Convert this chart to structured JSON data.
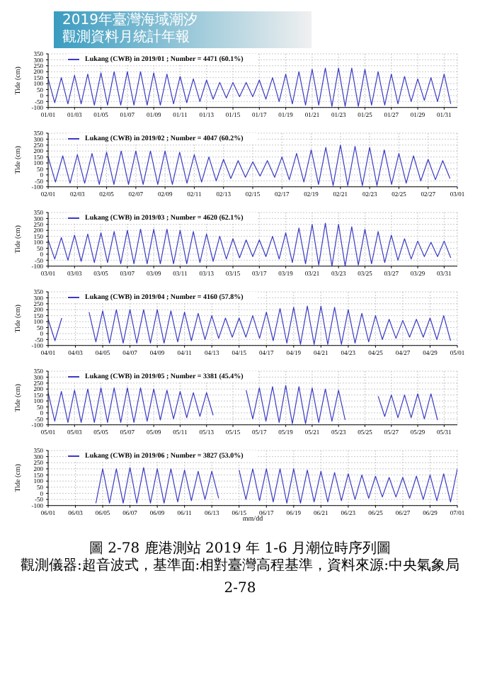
{
  "chart_data": [
    {
      "type": "line",
      "annotations": [
        "2019年臺灣海域潮汐",
        "觀測資料月統計年報"
      ],
      "ylabel": "Tide (cm)",
      "ylim": [
        -100,
        350
      ],
      "yticks": [
        -100,
        -50,
        0,
        50,
        100,
        150,
        200,
        250,
        300,
        350
      ],
      "xlim": [
        "2019-01-01",
        "2019-02-01"
      ],
      "xticks": [
        {
          "value": "2019-01-01",
          "label": "01/01"
        },
        {
          "value": "2019-01-03",
          "label": "01/03"
        },
        {
          "value": "2019-01-05",
          "label": "01/05"
        },
        {
          "value": "2019-01-07",
          "label": "01/07"
        },
        {
          "value": "2019-01-09",
          "label": "01/09"
        },
        {
          "value": "2019-01-11",
          "label": "01/11"
        },
        {
          "value": "2019-01-13",
          "label": "01/13"
        },
        {
          "value": "2019-01-15",
          "label": "01/15"
        },
        {
          "value": "2019-01-17",
          "label": "01/17"
        },
        {
          "value": "2019-01-19",
          "label": "01/19"
        },
        {
          "value": "2019-01-21",
          "label": "01/21"
        },
        {
          "value": "2019-01-23",
          "label": "01/23"
        },
        {
          "value": "2019-01-25",
          "label": "01/25"
        },
        {
          "value": "2019-01-27",
          "label": "01/27"
        },
        {
          "value": "2019-01-29",
          "label": "01/29"
        },
        {
          "value": "2019-01-31",
          "label": "01/31"
        }
      ],
      "grid": true,
      "legend": "top left",
      "marker": "none",
      "line_style": "solid",
      "series": [
        {
          "name": "Lukang (CWB) in 2019/01 ; Number = 4471  (60.1%)",
          "color": "#3b3bc4",
          "x": [
            "2019-01-01",
            "2019-01-01T12:00",
            "2019-01-02",
            "2019-01-02T12:00",
            "2019-01-03",
            "2019-01-03T12:00",
            "2019-01-04",
            "2019-01-04T12:00",
            "2019-01-05",
            "2019-01-05T12:00",
            "2019-01-06",
            "2019-01-06T12:00",
            "2019-01-07",
            "2019-01-07T12:00",
            "2019-01-08",
            "2019-01-08T12:00",
            "2019-01-09",
            "2019-01-09T12:00",
            "2019-01-10",
            "2019-01-10T12:00",
            "2019-01-11",
            "2019-01-11T12:00",
            "2019-01-12",
            "2019-01-12T12:00",
            "2019-01-13",
            "2019-01-13T12:00",
            "2019-01-14",
            "2019-01-14T12:00",
            "2019-01-15",
            "2019-01-15T12:00",
            "2019-01-16",
            "2019-01-16T12:00",
            "2019-01-17",
            "2019-01-17T12:00",
            "2019-01-18",
            "2019-01-18T12:00",
            "2019-01-19",
            "2019-01-19T12:00",
            "2019-01-20",
            "2019-01-20T12:00",
            "2019-01-21",
            "2019-01-21T12:00",
            "2019-01-22",
            "2019-01-22T12:00",
            "2019-01-23",
            "2019-01-23T12:00",
            "2019-01-24",
            "2019-01-24T12:00",
            "2019-01-25",
            "2019-01-25T12:00",
            "2019-01-26",
            "2019-01-26T12:00",
            "2019-01-27",
            "2019-01-27T12:00",
            "2019-01-28",
            "2019-01-28T12:00",
            "2019-01-29",
            "2019-01-29T12:00",
            "2019-01-30",
            "2019-01-30T12:00",
            "2019-01-31",
            "2019-01-31T12:00"
          ],
          "values": [
            140,
            -60,
            150,
            -70,
            170,
            -70,
            180,
            -80,
            190,
            -80,
            200,
            -80,
            200,
            -80,
            200,
            -80,
            190,
            -80,
            180,
            -70,
            160,
            -60,
            140,
            -50,
            130,
            -30,
            110,
            -20,
            110,
            -10,
            110,
            -10,
            130,
            -30,
            150,
            -50,
            180,
            -70,
            200,
            -80,
            220,
            -80,
            230,
            -90,
            230,
            -90,
            230,
            -90,
            220,
            -80,
            200,
            -80,
            180,
            -70,
            160,
            -50,
            140,
            -40,
            150,
            -50,
            180,
            -70
          ]
        }
      ]
    },
    {
      "type": "line",
      "ylabel": "Tide (cm)",
      "ylim": [
        -100,
        350
      ],
      "yticks": [
        -100,
        -50,
        0,
        50,
        100,
        150,
        200,
        250,
        300,
        350
      ],
      "xlim": [
        "2019-02-01",
        "2019-03-01"
      ],
      "xticks": [
        {
          "value": "2019-02-01",
          "label": "02/01"
        },
        {
          "value": "2019-02-03",
          "label": "02/03"
        },
        {
          "value": "2019-02-05",
          "label": "02/05"
        },
        {
          "value": "2019-02-07",
          "label": "02/07"
        },
        {
          "value": "2019-02-09",
          "label": "02/09"
        },
        {
          "value": "2019-02-11",
          "label": "02/11"
        },
        {
          "value": "2019-02-13",
          "label": "02/13"
        },
        {
          "value": "2019-02-15",
          "label": "02/15"
        },
        {
          "value": "2019-02-17",
          "label": "02/17"
        },
        {
          "value": "2019-02-19",
          "label": "02/19"
        },
        {
          "value": "2019-02-21",
          "label": "02/21"
        },
        {
          "value": "2019-02-23",
          "label": "02/23"
        },
        {
          "value": "2019-02-25",
          "label": "02/25"
        },
        {
          "value": "2019-02-27",
          "label": "02/27"
        },
        {
          "value": "2019-03-01",
          "label": "03/01"
        }
      ],
      "grid": true,
      "legend": "top left",
      "marker": "none",
      "line_style": "solid",
      "series": [
        {
          "name": "Lukang (CWB) in 2019/02 ; Number = 4047  (60.2%)",
          "color": "#3b3bc4",
          "x": [
            "2019-02-01",
            "2019-02-01T12:00",
            "2019-02-02",
            "2019-02-02T12:00",
            "2019-02-03",
            "2019-02-03T12:00",
            "2019-02-04",
            "2019-02-04T12:00",
            "2019-02-05",
            "2019-02-05T12:00",
            "2019-02-06",
            "2019-02-06T12:00",
            "2019-02-07",
            "2019-02-07T12:00",
            "2019-02-08",
            "2019-02-08T12:00",
            "2019-02-09",
            "2019-02-09T12:00",
            "2019-02-10",
            "2019-02-10T12:00",
            "2019-02-11",
            "2019-02-11T12:00",
            "2019-02-12",
            "2019-02-12T12:00",
            "2019-02-13",
            "2019-02-13T12:00",
            "2019-02-14",
            "2019-02-14T12:00",
            "2019-02-15",
            "2019-02-15T12:00",
            "2019-02-16",
            "2019-02-16T12:00",
            "2019-02-17",
            "2019-02-17T12:00",
            "2019-02-18",
            "2019-02-18T12:00",
            "2019-02-19",
            "2019-02-19T12:00",
            "2019-02-20",
            "2019-02-20T12:00",
            "2019-02-21",
            "2019-02-21T12:00",
            "2019-02-22",
            "2019-02-22T12:00",
            "2019-02-23",
            "2019-02-23T12:00",
            "2019-02-24",
            "2019-02-24T12:00",
            "2019-02-25",
            "2019-02-25T12:00",
            "2019-02-26",
            "2019-02-26T12:00",
            "2019-02-27",
            "2019-02-27T12:00",
            "2019-02-28",
            "2019-02-28T12:00"
          ],
          "values": [
            150,
            -60,
            160,
            -70,
            170,
            -70,
            180,
            -80,
            190,
            -80,
            200,
            -80,
            200,
            -80,
            200,
            -80,
            200,
            -80,
            190,
            -70,
            170,
            -60,
            150,
            -50,
            130,
            -30,
            120,
            -20,
            110,
            -10,
            120,
            -20,
            150,
            -40,
            180,
            -60,
            210,
            -80,
            230,
            -90,
            250,
            -90,
            240,
            -90,
            230,
            -90,
            210,
            -80,
            180,
            -70,
            160,
            -50,
            130,
            -40,
            120,
            -30
          ]
        }
      ]
    },
    {
      "type": "line",
      "ylabel": "Tide (cm)",
      "ylim": [
        -100,
        350
      ],
      "yticks": [
        -100,
        -50,
        0,
        50,
        100,
        150,
        200,
        250,
        300,
        350
      ],
      "xlim": [
        "2019-03-01",
        "2019-04-01"
      ],
      "xticks": [
        {
          "value": "2019-03-01",
          "label": "03/01"
        },
        {
          "value": "2019-03-03",
          "label": "03/03"
        },
        {
          "value": "2019-03-05",
          "label": "03/05"
        },
        {
          "value": "2019-03-07",
          "label": "03/07"
        },
        {
          "value": "2019-03-09",
          "label": "03/09"
        },
        {
          "value": "2019-03-11",
          "label": "03/11"
        },
        {
          "value": "2019-03-13",
          "label": "03/13"
        },
        {
          "value": "2019-03-15",
          "label": "03/15"
        },
        {
          "value": "2019-03-17",
          "label": "03/17"
        },
        {
          "value": "2019-03-19",
          "label": "03/19"
        },
        {
          "value": "2019-03-21",
          "label": "03/21"
        },
        {
          "value": "2019-03-23",
          "label": "03/23"
        },
        {
          "value": "2019-03-25",
          "label": "03/25"
        },
        {
          "value": "2019-03-27",
          "label": "03/27"
        },
        {
          "value": "2019-03-29",
          "label": "03/29"
        },
        {
          "value": "2019-03-31",
          "label": "03/31"
        }
      ],
      "grid": true,
      "legend": "top left",
      "marker": "none",
      "line_style": "solid",
      "series": [
        {
          "name": "Lukang (CWB) in 2019/03 ; Number = 4620  (62.1%)",
          "color": "#3b3bc4",
          "x": [
            "2019-03-01",
            "2019-03-01T12:00",
            "2019-03-02",
            "2019-03-02T12:00",
            "2019-03-03",
            "2019-03-03T12:00",
            "2019-03-04",
            "2019-03-04T12:00",
            "2019-03-05",
            "2019-03-05T12:00",
            "2019-03-06",
            "2019-03-06T12:00",
            "2019-03-07",
            "2019-03-07T12:00",
            "2019-03-08",
            "2019-03-08T12:00",
            "2019-03-09",
            "2019-03-09T12:00",
            "2019-03-10",
            "2019-03-10T12:00",
            "2019-03-11",
            "2019-03-11T12:00",
            "2019-03-12",
            "2019-03-12T12:00",
            "2019-03-13",
            "2019-03-13T12:00",
            "2019-03-14",
            "2019-03-14T12:00",
            "2019-03-15",
            "2019-03-15T12:00",
            "2019-03-16",
            "2019-03-16T12:00",
            "2019-03-17",
            "2019-03-17T12:00",
            "2019-03-18",
            "2019-03-18T12:00",
            "2019-03-19",
            "2019-03-19T12:00",
            "2019-03-20",
            "2019-03-20T12:00",
            "2019-03-21",
            "2019-03-21T12:00",
            "2019-03-22",
            "2019-03-22T12:00",
            "2019-03-23",
            "2019-03-23T12:00",
            "2019-03-24",
            "2019-03-24T12:00",
            "2019-03-25",
            "2019-03-25T12:00",
            "2019-03-26",
            "2019-03-26T12:00",
            "2019-03-27",
            "2019-03-27T12:00",
            "2019-03-28",
            "2019-03-28T12:00",
            "2019-03-29",
            "2019-03-29T12:00",
            "2019-03-30",
            "2019-03-30T12:00",
            "2019-03-31",
            "2019-03-31T12:00"
          ],
          "values": [
            120,
            -40,
            140,
            -50,
            160,
            -60,
            170,
            -70,
            180,
            -70,
            190,
            -80,
            200,
            -80,
            210,
            -80,
            210,
            -80,
            210,
            -80,
            200,
            -80,
            190,
            -70,
            170,
            -60,
            150,
            -40,
            130,
            -30,
            120,
            -20,
            120,
            -20,
            150,
            -40,
            180,
            -70,
            220,
            -80,
            250,
            -90,
            260,
            -100,
            250,
            -100,
            230,
            -90,
            210,
            -80,
            190,
            -70,
            160,
            -50,
            130,
            -40,
            110,
            -20,
            100,
            -20,
            110,
            -30
          ]
        }
      ]
    },
    {
      "type": "line",
      "ylabel": "Tide (cm)",
      "ylim": [
        -100,
        350
      ],
      "yticks": [
        -100,
        -50,
        0,
        50,
        100,
        150,
        200,
        250,
        300,
        350
      ],
      "xlim": [
        "2019-04-01",
        "2019-05-01"
      ],
      "xticks": [
        {
          "value": "2019-04-01",
          "label": "04/01"
        },
        {
          "value": "2019-04-03",
          "label": "04/03"
        },
        {
          "value": "2019-04-05",
          "label": "04/05"
        },
        {
          "value": "2019-04-07",
          "label": "04/07"
        },
        {
          "value": "2019-04-09",
          "label": "04/09"
        },
        {
          "value": "2019-04-11",
          "label": "04/11"
        },
        {
          "value": "2019-04-13",
          "label": "04/13"
        },
        {
          "value": "2019-04-15",
          "label": "04/15"
        },
        {
          "value": "2019-04-17",
          "label": "04/17"
        },
        {
          "value": "2019-04-19",
          "label": "04/19"
        },
        {
          "value": "2019-04-21",
          "label": "04/21"
        },
        {
          "value": "2019-04-23",
          "label": "04/23"
        },
        {
          "value": "2019-04-25",
          "label": "04/25"
        },
        {
          "value": "2019-04-27",
          "label": "04/27"
        },
        {
          "value": "2019-04-29",
          "label": "04/29"
        },
        {
          "value": "2019-05-01",
          "label": "05/01"
        }
      ],
      "grid": true,
      "legend": "top left",
      "marker": "none",
      "line_style": "solid",
      "series": [
        {
          "name": "Lukang (CWB) in 2019/04 ; Number = 4160  (57.8%)",
          "color": "#3b3bc4",
          "x": [
            "2019-04-01",
            "2019-04-01T12:00",
            "2019-04-02",
            "2019-04-02T12:00",
            "2019-04-03",
            "2019-04-03T12:00",
            "2019-04-04",
            "2019-04-04T12:00",
            "2019-04-05",
            "2019-04-05T12:00",
            "2019-04-06",
            "2019-04-06T12:00",
            "2019-04-07",
            "2019-04-07T12:00",
            "2019-04-08",
            "2019-04-08T12:00",
            "2019-04-09",
            "2019-04-09T12:00",
            "2019-04-10",
            "2019-04-10T12:00",
            "2019-04-11",
            "2019-04-11T12:00",
            "2019-04-12",
            "2019-04-12T12:00",
            "2019-04-13",
            "2019-04-13T12:00",
            "2019-04-14",
            "2019-04-14T12:00",
            "2019-04-15",
            "2019-04-15T12:00",
            "2019-04-16",
            "2019-04-16T12:00",
            "2019-04-17",
            "2019-04-17T12:00",
            "2019-04-18",
            "2019-04-18T12:00",
            "2019-04-19",
            "2019-04-19T12:00",
            "2019-04-20",
            "2019-04-20T12:00",
            "2019-04-21",
            "2019-04-21T12:00",
            "2019-04-22",
            "2019-04-22T12:00",
            "2019-04-23",
            "2019-04-23T12:00",
            "2019-04-24",
            "2019-04-24T12:00",
            "2019-04-25",
            "2019-04-25T12:00",
            "2019-04-26",
            "2019-04-26T12:00",
            "2019-04-27",
            "2019-04-27T12:00",
            "2019-04-28",
            "2019-04-28T12:00",
            "2019-04-29",
            "2019-04-29T12:00",
            "2019-04-30",
            "2019-04-30T12:00"
          ],
          "values": [
            120,
            -60,
            130,
            null,
            null,
            null,
            180,
            -70,
            190,
            -80,
            200,
            -80,
            200,
            -80,
            200,
            -80,
            200,
            -80,
            190,
            -70,
            180,
            -60,
            170,
            -50,
            150,
            -40,
            130,
            -30,
            130,
            -30,
            150,
            -40,
            180,
            -60,
            210,
            -80,
            220,
            -90,
            230,
            -90,
            230,
            -90,
            220,
            -90,
            200,
            -80,
            170,
            -70,
            150,
            -50,
            120,
            -40,
            110,
            -30,
            120,
            -30,
            130,
            -50,
            150,
            -60
          ]
        }
      ]
    },
    {
      "type": "line",
      "ylabel": "Tide (cm)",
      "ylim": [
        -100,
        350
      ],
      "yticks": [
        -100,
        -50,
        0,
        50,
        100,
        150,
        200,
        250,
        300,
        350
      ],
      "xlim": [
        "2019-05-01",
        "2019-06-01"
      ],
      "xticks": [
        {
          "value": "2019-05-01",
          "label": "05/01"
        },
        {
          "value": "2019-05-03",
          "label": "05/03"
        },
        {
          "value": "2019-05-05",
          "label": "05/05"
        },
        {
          "value": "2019-05-07",
          "label": "05/07"
        },
        {
          "value": "2019-05-09",
          "label": "05/09"
        },
        {
          "value": "2019-05-11",
          "label": "05/11"
        },
        {
          "value": "2019-05-13",
          "label": "05/13"
        },
        {
          "value": "2019-05-15",
          "label": "05/15"
        },
        {
          "value": "2019-05-17",
          "label": "05/17"
        },
        {
          "value": "2019-05-19",
          "label": "05/19"
        },
        {
          "value": "2019-05-21",
          "label": "05/21"
        },
        {
          "value": "2019-05-23",
          "label": "05/23"
        },
        {
          "value": "2019-05-25",
          "label": "05/25"
        },
        {
          "value": "2019-05-27",
          "label": "05/27"
        },
        {
          "value": "2019-05-29",
          "label": "05/29"
        },
        {
          "value": "2019-05-31",
          "label": "05/31"
        }
      ],
      "grid": true,
      "legend": "top left",
      "marker": "none",
      "line_style": "solid",
      "series": [
        {
          "name": "Lukang (CWB) in 2019/05 ; Number = 3381  (45.4%)",
          "color": "#3b3bc4",
          "x": [
            "2019-05-01",
            "2019-05-01T12:00",
            "2019-05-02",
            "2019-05-02T12:00",
            "2019-05-03",
            "2019-05-03T12:00",
            "2019-05-04",
            "2019-05-04T12:00",
            "2019-05-05",
            "2019-05-05T12:00",
            "2019-05-06",
            "2019-05-06T12:00",
            "2019-05-07",
            "2019-05-07T12:00",
            "2019-05-08",
            "2019-05-08T12:00",
            "2019-05-09",
            "2019-05-09T12:00",
            "2019-05-10",
            "2019-05-10T12:00",
            "2019-05-11",
            "2019-05-11T12:00",
            "2019-05-12",
            "2019-05-12T12:00",
            "2019-05-13",
            "2019-05-13T12:00",
            "2019-05-14",
            "2019-05-14T12:00",
            "2019-05-15",
            "2019-05-15T12:00",
            "2019-05-16",
            "2019-05-16T12:00",
            "2019-05-17",
            "2019-05-17T12:00",
            "2019-05-18",
            "2019-05-18T12:00",
            "2019-05-19",
            "2019-05-19T12:00",
            "2019-05-20",
            "2019-05-20T12:00",
            "2019-05-21",
            "2019-05-21T12:00",
            "2019-05-22",
            "2019-05-22T12:00",
            "2019-05-23",
            "2019-05-23T12:00",
            "2019-05-24",
            "2019-05-24T12:00",
            "2019-05-25",
            "2019-05-25T12:00",
            "2019-05-26",
            "2019-05-26T12:00",
            "2019-05-27",
            "2019-05-27T12:00",
            "2019-05-28",
            "2019-05-28T12:00",
            "2019-05-29",
            "2019-05-29T12:00",
            "2019-05-30",
            "2019-05-30T12:00"
          ],
          "values": [
            170,
            -70,
            180,
            -80,
            190,
            -80,
            200,
            -80,
            210,
            -80,
            210,
            -80,
            210,
            -80,
            210,
            -70,
            200,
            -60,
            190,
            -50,
            180,
            -40,
            170,
            -30,
            170,
            -20,
            null,
            null,
            null,
            null,
            190,
            -50,
            210,
            -70,
            220,
            -80,
            230,
            -90,
            220,
            -90,
            210,
            -80,
            200,
            -70,
            190,
            -60,
            null,
            null,
            null,
            null,
            140,
            -30,
            150,
            -40,
            150,
            -40,
            160,
            -50,
            160,
            -60
          ]
        }
      ]
    },
    {
      "type": "line",
      "xlabel": "mm/dd",
      "ylabel": "Tide (cm)",
      "annotations": [
        "圖 2-78 鹿港測站 2019 年 1-6 月潮位時序列圖",
        "觀測儀器:超音波式，基準面:相對臺灣高程基準，資料來源:中央氣象局",
        "2-78"
      ],
      "ylim": [
        -100,
        350
      ],
      "yticks": [
        -100,
        -50,
        0,
        50,
        100,
        150,
        200,
        250,
        300,
        350
      ],
      "xlim": [
        "2019-06-01",
        "2019-07-01"
      ],
      "xticks": [
        {
          "value": "2019-06-01",
          "label": "06/01"
        },
        {
          "value": "2019-06-03",
          "label": "06/03"
        },
        {
          "value": "2019-06-05",
          "label": "06/05"
        },
        {
          "value": "2019-06-07",
          "label": "06/07"
        },
        {
          "value": "2019-06-09",
          "label": "06/09"
        },
        {
          "value": "2019-06-11",
          "label": "06/11"
        },
        {
          "value": "2019-06-13",
          "label": "06/13"
        },
        {
          "value": "2019-06-15",
          "label": "06/15"
        },
        {
          "value": "2019-06-17",
          "label": "06/17"
        },
        {
          "value": "2019-06-19",
          "label": "06/19"
        },
        {
          "value": "2019-06-21",
          "label": "06/21"
        },
        {
          "value": "2019-06-23",
          "label": "06/23"
        },
        {
          "value": "2019-06-25",
          "label": "06/25"
        },
        {
          "value": "2019-06-27",
          "label": "06/27"
        },
        {
          "value": "2019-06-29",
          "label": "06/29"
        },
        {
          "value": "2019-07-01",
          "label": "07/01"
        }
      ],
      "grid": true,
      "legend": "top left",
      "marker": "none",
      "line_style": "solid",
      "series": [
        {
          "name": "Lukang (CWB) in 2019/06 ; Number = 3827  (53.0%)",
          "color": "#3b3bc4",
          "x": [
            "2019-06-04T12:00",
            "2019-06-05",
            "2019-06-05T12:00",
            "2019-06-06",
            "2019-06-06T12:00",
            "2019-06-07",
            "2019-06-07T12:00",
            "2019-06-08",
            "2019-06-08T12:00",
            "2019-06-09",
            "2019-06-09T12:00",
            "2019-06-10",
            "2019-06-10T12:00",
            "2019-06-11",
            "2019-06-11T12:00",
            "2019-06-12",
            "2019-06-12T12:00",
            "2019-06-13",
            "2019-06-13T12:00",
            "2019-06-14",
            "2019-06-14T12:00",
            "2019-06-15",
            "2019-06-15T12:00",
            "2019-06-16",
            "2019-06-16T12:00",
            "2019-06-17",
            "2019-06-17T12:00",
            "2019-06-18",
            "2019-06-18T12:00",
            "2019-06-19",
            "2019-06-19T12:00",
            "2019-06-20",
            "2019-06-20T12:00",
            "2019-06-21",
            "2019-06-21T12:00",
            "2019-06-22",
            "2019-06-22T12:00",
            "2019-06-23",
            "2019-06-23T12:00",
            "2019-06-24",
            "2019-06-24T12:00",
            "2019-06-25",
            "2019-06-25T12:00",
            "2019-06-26",
            "2019-06-26T12:00",
            "2019-06-27",
            "2019-06-27T12:00",
            "2019-06-28",
            "2019-06-28T12:00",
            "2019-06-29",
            "2019-06-29T12:00",
            "2019-06-30",
            "2019-06-30T12:00",
            "2019-07-01"
          ],
          "values": [
            -80,
            200,
            -80,
            200,
            -80,
            210,
            -80,
            210,
            -80,
            200,
            -80,
            200,
            -70,
            190,
            -60,
            180,
            -50,
            180,
            -40,
            null,
            null,
            190,
            -50,
            200,
            -60,
            200,
            -70,
            200,
            -80,
            200,
            -80,
            190,
            -70,
            180,
            -70,
            170,
            -60,
            160,
            -50,
            150,
            -40,
            140,
            -30,
            130,
            -30,
            130,
            -40,
            140,
            -50,
            150,
            -60,
            160,
            -70,
            200
          ]
        }
      ]
    }
  ]
}
